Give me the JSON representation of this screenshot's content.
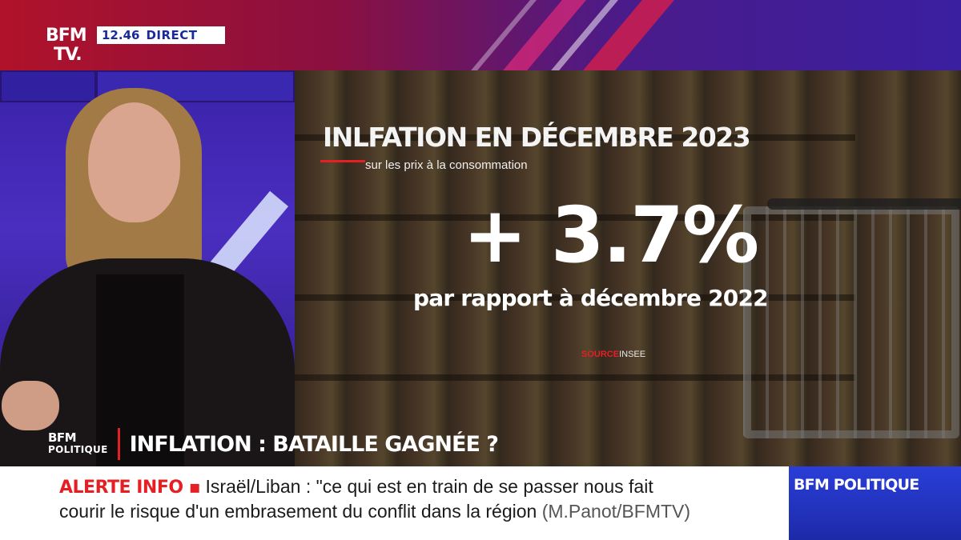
{
  "header": {
    "logo": {
      "line1": "BFM",
      "line2": "TV."
    },
    "time": "12.46",
    "live_label": "DIRECT"
  },
  "graphic": {
    "title": "INLFATION EN DÉCEMBRE 2023",
    "subtitle": "sur les prix à la consommation",
    "value": "+ 3.7%",
    "comparison": "par rapport à décembre 2022",
    "source_label": "SOURCE",
    "source_value": "INSEE"
  },
  "lower_third": {
    "show_logo": {
      "line1": "BFM",
      "line2": "POLITIQUE"
    },
    "headline": "INFLATION : BATAILLE GAGNÉE ?"
  },
  "ticker": {
    "alert_label": "ALERTE INFO ▪",
    "line1": "Israël/Liban : \"ce qui est en train de se passer nous fait",
    "line2": "courir le risque d'un embrasement du conflit dans la région",
    "source": "(M.Panot/BFMTV)"
  },
  "channel_badge": "BFM POLITIQUE",
  "colors": {
    "accent_red": "#e42025",
    "brand_blue": "#1c2aa8"
  }
}
